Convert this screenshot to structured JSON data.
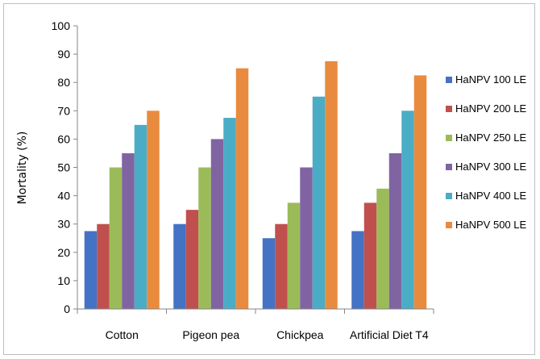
{
  "chart_data": {
    "type": "bar",
    "title": "",
    "xlabel": "",
    "ylabel": "Mortality (%)",
    "ylim": [
      0,
      100
    ],
    "yticks": [
      0,
      10,
      20,
      30,
      40,
      50,
      60,
      70,
      80,
      90,
      100
    ],
    "grid": false,
    "legend_position": "right",
    "categories": [
      "Cotton",
      "Pigeon pea",
      "Chickpea",
      "Artificial Diet T4"
    ],
    "series": [
      {
        "name": "HaNPV 100 LE",
        "color": "#4472c4",
        "values": [
          27.5,
          30,
          25,
          27.5
        ]
      },
      {
        "name": "HaNPV 200 LE",
        "color": "#c0504d",
        "values": [
          30,
          35,
          30,
          37.5
        ]
      },
      {
        "name": "HaNPV 250 LE",
        "color": "#9bbb59",
        "values": [
          50,
          50,
          37.5,
          42.5
        ]
      },
      {
        "name": "HaNPV 300 LE",
        "color": "#8064a2",
        "values": [
          55,
          60,
          50,
          55
        ]
      },
      {
        "name": "HaNPV 400 LE",
        "color": "#4bacc6",
        "values": [
          65,
          67.5,
          75,
          70
        ]
      },
      {
        "name": "HaNPV 500 LE",
        "color": "#e98b3f",
        "values": [
          70,
          85,
          87.5,
          82.5
        ]
      }
    ]
  }
}
